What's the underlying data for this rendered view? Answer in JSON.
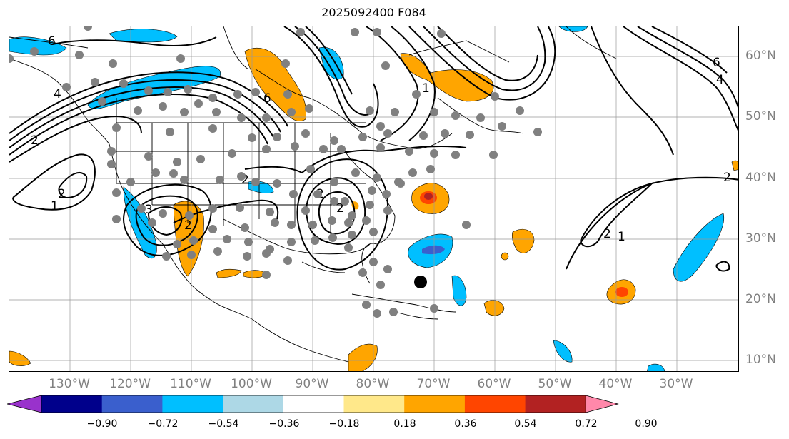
{
  "title": "2025092400 F084",
  "map": {
    "lon_labels": [
      "130°W",
      "120°W",
      "110°W",
      "100°W",
      "90°W",
      "80°W",
      "70°W",
      "60°W",
      "50°W",
      "40°W",
      "30°W"
    ],
    "lat_labels": [
      "60°N",
      "50°N",
      "40°N",
      "30°N",
      "20°N",
      "10°N"
    ],
    "contour_labels": [
      "6",
      "6",
      "2",
      "4",
      "2",
      "1",
      "2",
      "3",
      "2",
      "2",
      "2",
      "1",
      "6",
      "4",
      "2",
      "2",
      "1"
    ],
    "colors": {
      "contour": "#000000",
      "station_dot": "#808080",
      "marker": "#000000",
      "coast": "#000000",
      "grid": "#999999"
    }
  },
  "colorbar": {
    "labels": [
      "−0.90",
      "−0.72",
      "−0.54",
      "−0.36",
      "−0.18",
      "0.18",
      "0.36",
      "0.54",
      "0.72",
      "0.90"
    ],
    "colors": [
      "#9932cc",
      "#00008b",
      "#3a5fcd",
      "#00bfff",
      "#add8e6",
      "#ffffff",
      "#ffe88a",
      "#ffa500",
      "#ff4500",
      "#b22222",
      "#ff88aa"
    ]
  }
}
